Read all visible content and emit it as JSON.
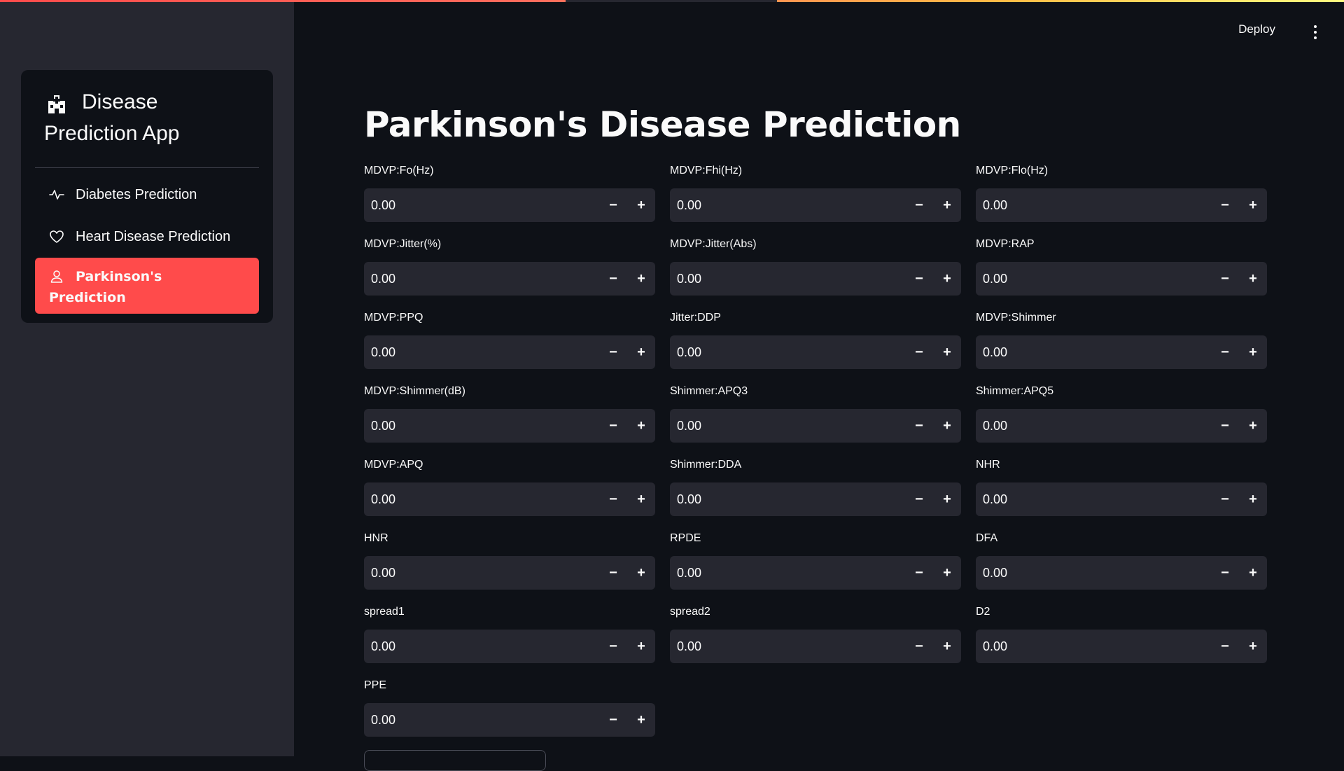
{
  "app": {
    "title": "Disease Prediction App",
    "accent_color": "#ff4b4b"
  },
  "header": {
    "deploy_label": "Deploy",
    "menu_icon": "kebab-menu-icon"
  },
  "sidebar": {
    "title_line1": "Disease",
    "title_line2": "Prediction App",
    "logo_icon": "hospital-icon",
    "items": [
      {
        "label": "Diabetes Prediction",
        "icon": "activity-icon",
        "active": false
      },
      {
        "label": "Heart Disease Prediction",
        "icon": "heart-icon",
        "active": false
      },
      {
        "label_line1": "Parkinson's",
        "label_line2": "Prediction",
        "icon": "person-icon",
        "active": true
      }
    ]
  },
  "main": {
    "title": "Parkinson's Disease Prediction",
    "fields": [
      {
        "label": "MDVP:Fo(Hz)",
        "value": "0.00"
      },
      {
        "label": "MDVP:Fhi(Hz)",
        "value": "0.00"
      },
      {
        "label": "MDVP:Flo(Hz)",
        "value": "0.00"
      },
      {
        "label": "MDVP:Jitter(%)",
        "value": "0.00"
      },
      {
        "label": "MDVP:Jitter(Abs)",
        "value": "0.00"
      },
      {
        "label": "MDVP:RAP",
        "value": "0.00"
      },
      {
        "label": "MDVP:PPQ",
        "value": "0.00"
      },
      {
        "label": "Jitter:DDP",
        "value": "0.00"
      },
      {
        "label": "MDVP:Shimmer",
        "value": "0.00"
      },
      {
        "label": "MDVP:Shimmer(dB)",
        "value": "0.00"
      },
      {
        "label": "Shimmer:APQ3",
        "value": "0.00"
      },
      {
        "label": "Shimmer:APQ5",
        "value": "0.00"
      },
      {
        "label": "MDVP:APQ",
        "value": "0.00"
      },
      {
        "label": "Shimmer:DDA",
        "value": "0.00"
      },
      {
        "label": "NHR",
        "value": "0.00"
      },
      {
        "label": "HNR",
        "value": "0.00"
      },
      {
        "label": "RPDE",
        "value": "0.00"
      },
      {
        "label": "DFA",
        "value": "0.00"
      },
      {
        "label": "spread1",
        "value": "0.00"
      },
      {
        "label": "spread2",
        "value": "0.00"
      },
      {
        "label": "D2",
        "value": "0.00"
      },
      {
        "label": "PPE",
        "value": "0.00"
      }
    ],
    "stepper": {
      "minus": "−",
      "plus": "+"
    }
  }
}
